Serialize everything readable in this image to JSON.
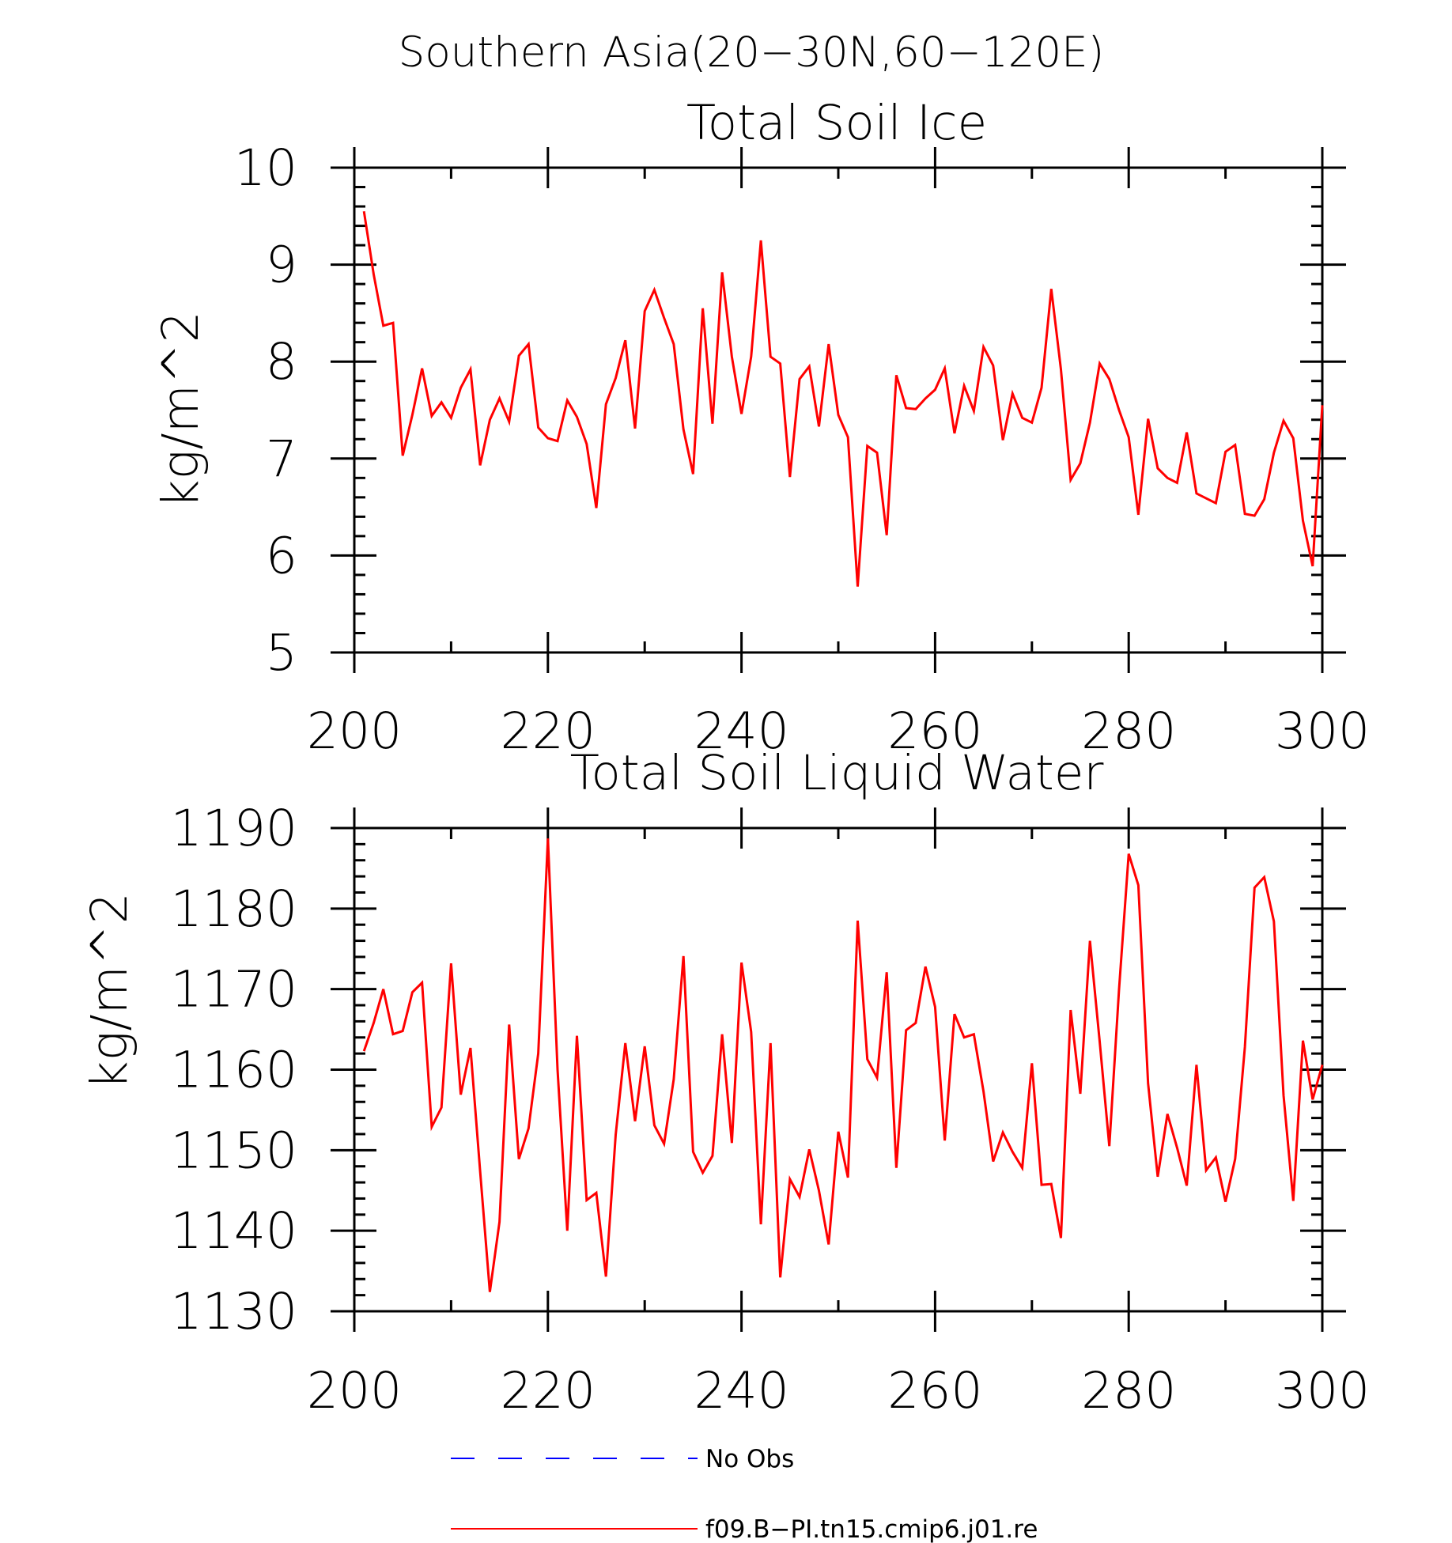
{
  "figure": {
    "title": "Southern Asia(20−30N,60−120E)"
  },
  "colors": {
    "series": "#ff0000",
    "obs": "#0000ff",
    "axis": "#000000"
  },
  "legend": {
    "entries": [
      {
        "label": "No Obs",
        "color": "#0000ff",
        "style": "dashed"
      },
      {
        "label": "f09.B−PI.tn15.cmip6.j01.re",
        "color": "#ff0000",
        "style": "solid"
      }
    ]
  },
  "chart_data": [
    {
      "type": "line",
      "title": "Total Soil Ice",
      "ylabel": "kg/m^2",
      "xlabel": "",
      "xlim": [
        200,
        300
      ],
      "ylim": [
        5,
        10
      ],
      "xticks": [
        200,
        220,
        240,
        260,
        280,
        300
      ],
      "xtick_labels": [
        "200",
        "220",
        "240",
        "260",
        "280",
        "300"
      ],
      "yticks": [
        5,
        6,
        7,
        8,
        9,
        10
      ],
      "ytick_labels": [
        "5",
        "6",
        "7",
        "8",
        "9",
        "10"
      ],
      "x_start": 201,
      "x_step": 1,
      "series": [
        {
          "name": "f09.B−PI.tn15.cmip6.j01.re",
          "color": "#ff0000",
          "values": [
            9.55,
            8.9,
            8.37,
            8.4,
            7.03,
            7.45,
            7.93,
            7.44,
            7.58,
            7.42,
            7.73,
            7.92,
            6.93,
            7.4,
            7.62,
            7.38,
            8.06,
            8.18,
            7.32,
            7.21,
            7.18,
            7.6,
            7.43,
            7.15,
            6.49,
            7.56,
            7.83,
            8.22,
            7.31,
            8.52,
            8.74,
            8.45,
            8.18,
            7.3,
            6.84,
            8.55,
            7.36,
            8.92,
            8.05,
            7.46,
            8.05,
            9.25,
            8.05,
            7.98,
            6.81,
            7.82,
            7.95,
            7.33,
            8.18,
            7.45,
            7.22,
            5.68,
            7.13,
            7.06,
            6.21,
            7.86,
            7.52,
            7.51,
            7.62,
            7.71,
            7.93,
            7.26,
            7.75,
            7.49,
            8.15,
            7.96,
            7.19,
            7.67,
            7.42,
            7.37,
            7.73,
            8.75,
            7.92,
            6.78,
            6.95,
            7.37,
            7.98,
            7.82,
            7.5,
            7.22,
            6.42,
            7.41,
            6.9,
            6.8,
            6.75,
            7.27,
            6.64,
            6.59,
            6.54,
            7.07,
            7.14,
            6.43,
            6.41,
            6.58,
            7.06,
            7.39,
            7.21,
            6.36,
            5.89,
            7.55
          ]
        }
      ]
    },
    {
      "type": "line",
      "title": "Total Soil Liquid Water",
      "ylabel": "kg/m^2",
      "xlabel": "",
      "xlim": [
        200,
        300
      ],
      "ylim": [
        1130,
        1190
      ],
      "xticks": [
        200,
        220,
        240,
        260,
        280,
        300
      ],
      "xtick_labels": [
        "200",
        "220",
        "240",
        "260",
        "280",
        "300"
      ],
      "yticks": [
        1130,
        1140,
        1150,
        1160,
        1170,
        1180,
        1190
      ],
      "ytick_labels": [
        "1130",
        "1140",
        "1150",
        "1160",
        "1170",
        "1180",
        "1190"
      ],
      "x_start": 201,
      "x_step": 1,
      "series": [
        {
          "name": "f09.B−PI.tn15.cmip6.j01.re",
          "color": "#ff0000",
          "values": [
            1162.3,
            1165.8,
            1170.0,
            1164.4,
            1164.8,
            1169.6,
            1170.8,
            1152.9,
            1155.3,
            1173.2,
            1156.9,
            1162.7,
            1147.4,
            1132.4,
            1141.1,
            1165.6,
            1148.9,
            1152.7,
            1162.0,
            1188.7,
            1160.0,
            1140.0,
            1164.2,
            1143.8,
            1144.7,
            1134.3,
            1151.9,
            1163.3,
            1153.6,
            1162.9,
            1153.1,
            1150.8,
            1158.8,
            1174.1,
            1149.8,
            1147.2,
            1149.3,
            1164.4,
            1150.9,
            1173.3,
            1164.7,
            1140.8,
            1163.3,
            1134.2,
            1146.4,
            1144.2,
            1150.1,
            1145.0,
            1138.3,
            1152.3,
            1146.6,
            1178.5,
            1161.3,
            1159.0,
            1172.1,
            1147.8,
            1164.9,
            1165.8,
            1172.8,
            1167.8,
            1151.2,
            1166.9,
            1164.0,
            1164.4,
            1157.3,
            1148.6,
            1152.2,
            1149.8,
            1147.8,
            1160.8,
            1145.7,
            1145.8,
            1139.1,
            1167.4,
            1157.0,
            1176.0,
            1163.5,
            1150.5,
            1170.0,
            1186.8,
            1182.9,
            1158.3,
            1146.7,
            1154.5,
            1150.3,
            1145.6,
            1160.6,
            1147.5,
            1149.1,
            1143.6,
            1148.9,
            1162.8,
            1182.6,
            1183.9,
            1178.4,
            1156.8,
            1143.7,
            1163.6,
            1156.3,
            1160.6
          ]
        }
      ]
    }
  ]
}
